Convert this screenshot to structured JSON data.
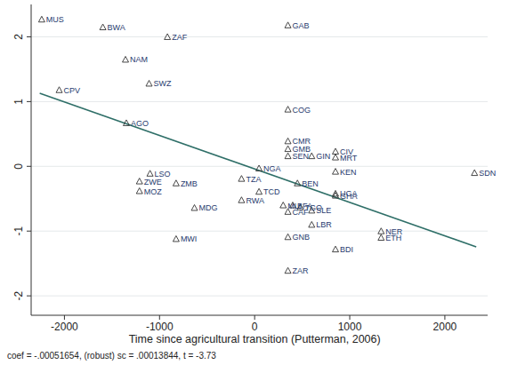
{
  "chart_data": {
    "type": "scatter",
    "x_label": "Time since agricultural transition (Putterman, 2006)",
    "note": "coef = -.00051654, (robust) sc = .00013844, t = -3.73",
    "labels": [
      "MUS",
      "BWA",
      "ZAF",
      "NAM",
      "SWZ",
      "CPV",
      "AGO",
      "GAB",
      "COG",
      "CMR",
      "GMB",
      "SEN",
      "GIN",
      "CIV",
      "MRT",
      "KEN",
      "UGA",
      "GHA",
      "SDN",
      "NGA",
      "TZA",
      "BEN",
      "TCD",
      "RWA",
      "MLI",
      "BFA",
      "TGO",
      "CAF",
      "SLE",
      "LBR",
      "GNB",
      "ZAR",
      "BDI",
      "NER",
      "ETH",
      "LSO",
      "ZWE",
      "MOZ",
      "ZMB",
      "MDG",
      "MWI"
    ],
    "x": [
      -2239,
      -1596,
      -917,
      -1358,
      -1110,
      -2055,
      -1349,
      350,
      350,
      350,
      350,
      350,
      600,
      850,
      850,
      850,
      850,
      850,
      2312,
      46,
      -138,
      450,
      46,
      -138,
      300,
      400,
      480,
      350,
      600,
      600,
      350,
      350,
      850,
      1330,
      1330,
      -1100,
      -1211,
      -1211,
      -826,
      -633,
      -826
    ],
    "values": [
      2.27,
      2.15,
      2.0,
      1.65,
      1.28,
      1.18,
      0.67,
      2.18,
      0.88,
      0.39,
      0.27,
      0.16,
      0.16,
      0.23,
      0.14,
      -0.08,
      -0.42,
      -0.45,
      -0.1,
      -0.03,
      -0.19,
      -0.26,
      -0.39,
      -0.52,
      -0.6,
      -0.6,
      -0.63,
      -0.7,
      -0.68,
      -0.9,
      -1.09,
      -1.61,
      -1.28,
      -1.0,
      -1.1,
      -0.11,
      -0.23,
      -0.38,
      -0.26,
      -0.64,
      -1.12
    ],
    "fit_line": {
      "x": [
        -2260,
        2330
      ],
      "values": [
        1.127,
        -1.244
      ],
      "color": "#2f6f68"
    },
    "color": "#1f3a6e",
    "marker": "triangle",
    "xlim": [
      -2350,
      2450
    ],
    "ylim": [
      -2.3,
      2.5
    ],
    "xticks": [
      -2000,
      -1000,
      0,
      1000,
      2000
    ],
    "yticks": [
      -2,
      -1,
      0,
      1,
      2
    ],
    "grid": true
  }
}
